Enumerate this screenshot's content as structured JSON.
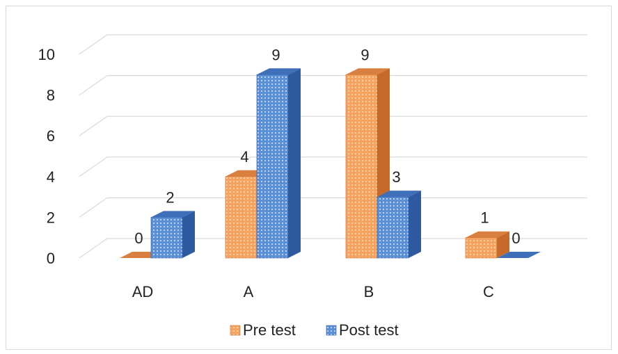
{
  "chart_data": {
    "type": "bar",
    "categories": [
      "AD",
      "A",
      "B",
      "C"
    ],
    "series": [
      {
        "name": "Pre test",
        "values": [
          0,
          4,
          9,
          1
        ]
      },
      {
        "name": "Post test",
        "values": [
          2,
          9,
          3,
          0
        ]
      }
    ],
    "ylim": [
      0,
      10
    ],
    "yticks": [
      0,
      2,
      4,
      6,
      8,
      10
    ],
    "title": "",
    "xlabel": "",
    "ylabel": "",
    "grid": true,
    "style": "3d-column",
    "legend_position": "bottom",
    "colors": {
      "Pre test": {
        "front": "#f4a460",
        "side": "#c56a2a",
        "top": "#d98040",
        "pattern": "#ffd9b0"
      },
      "Post test": {
        "front": "#5b8fd6",
        "side": "#2e5aa0",
        "top": "#3f6fb8",
        "pattern": "#cfe0f7"
      }
    }
  }
}
